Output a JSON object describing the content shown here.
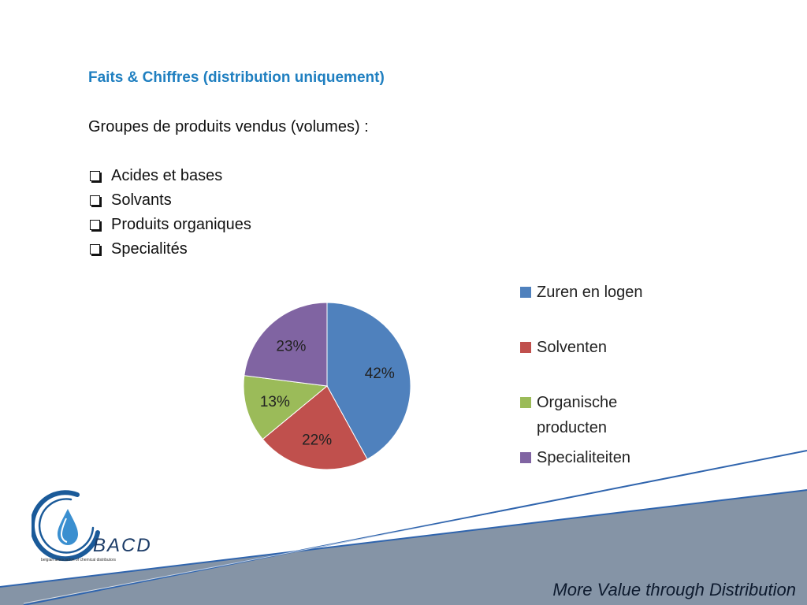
{
  "slide": {
    "heading": "Faits & Chiffres (distribution uniquement)",
    "subheading": "Groupes de produits vendus (volumes) :",
    "bullets": [
      "Acides et bases",
      "Solvants",
      "Produits organiques",
      "Specialités"
    ],
    "tagline": "More Value through Distribution"
  },
  "logo": {
    "name": "BACD",
    "subtitle": "belgian association of chemical distributors",
    "colors": {
      "ring": "#1a5a99",
      "drop": "#3a8fd0"
    }
  },
  "chart_data": {
    "type": "pie",
    "categories": [
      "Zuren en logen",
      "Solventen",
      "Organische producten",
      "Specialiteiten"
    ],
    "values": [
      42,
      22,
      13,
      23
    ],
    "labels": [
      "42%",
      "22%",
      "13%",
      "23%"
    ],
    "colors": [
      "#4f81bd",
      "#c0504d",
      "#9bbb59",
      "#8064a2"
    ],
    "legend_position": "right"
  },
  "colors": {
    "heading": "#1f7fc0",
    "band": "#8594a6",
    "band_line": "#2f64ad"
  }
}
